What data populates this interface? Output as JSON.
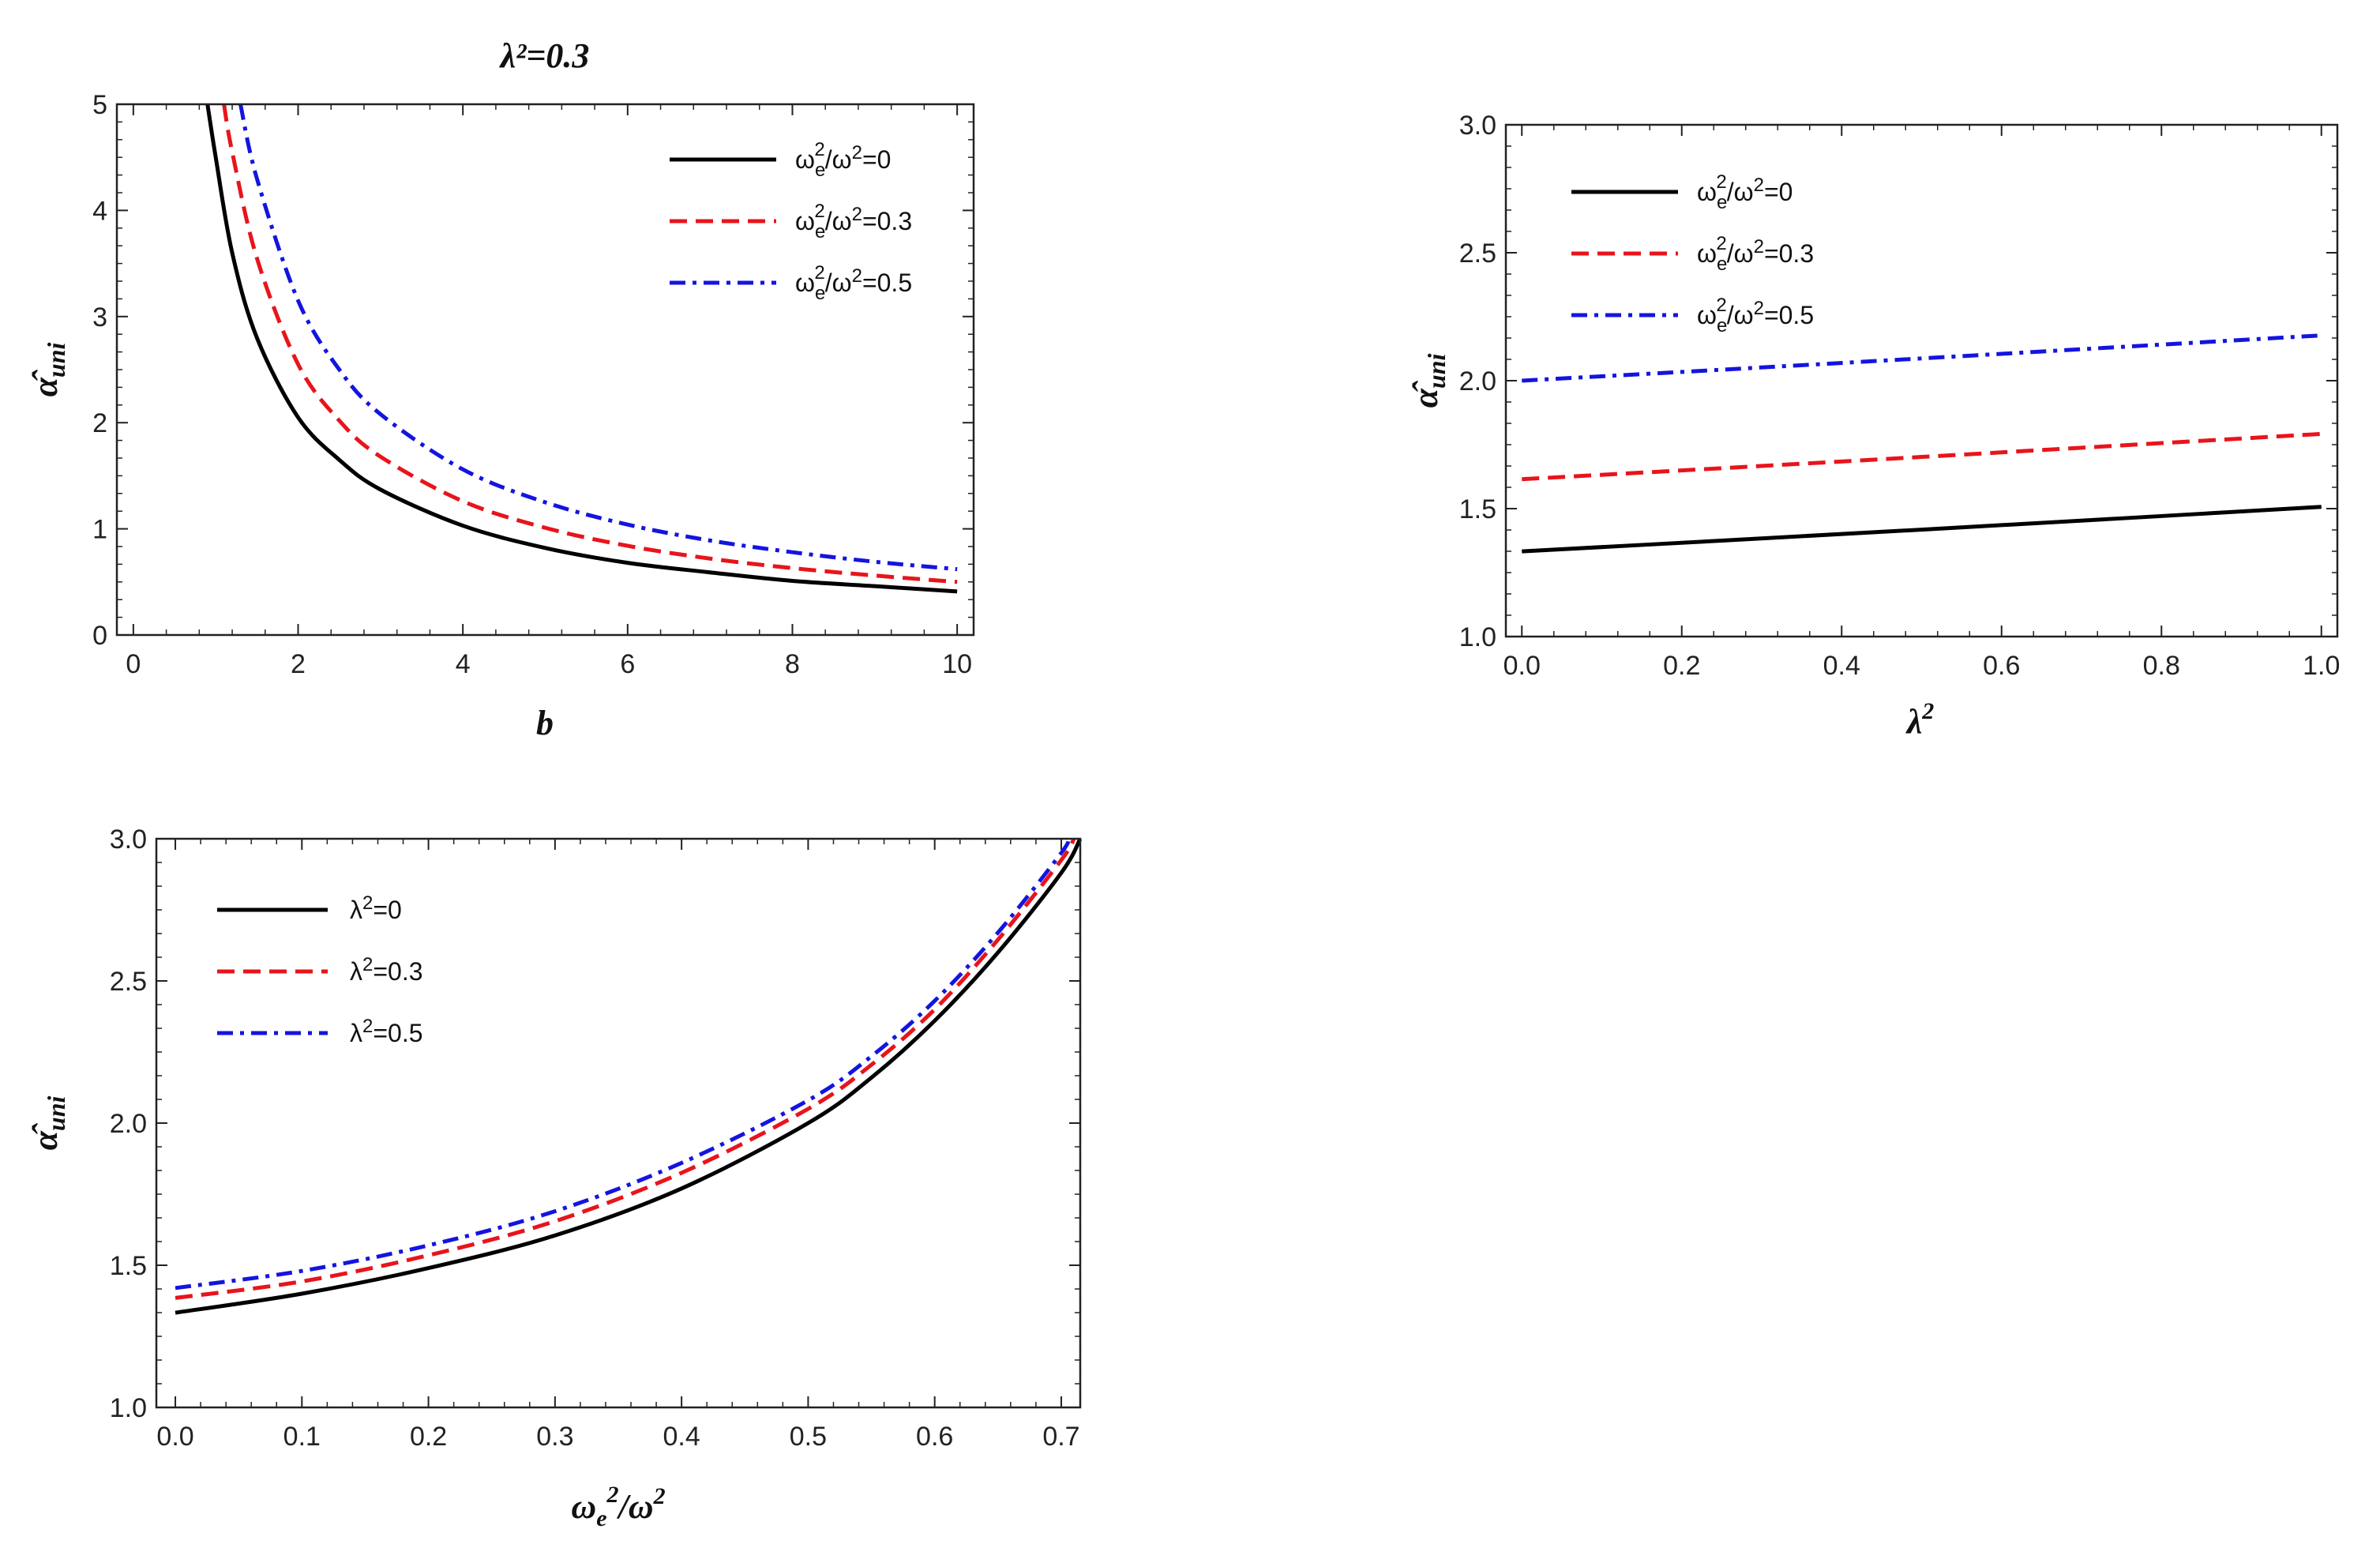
{
  "colors": {
    "black": "#000000",
    "red": "#e8141b",
    "blue": "#1414e0"
  },
  "chart_data": [
    {
      "type": "line",
      "title": "λ²=0.3",
      "xlabel": "b",
      "ylabel": "α̂uni",
      "xlim": [
        -0.2,
        10.2
      ],
      "ylim": [
        0,
        5
      ],
      "xticks": [
        0,
        2,
        4,
        6,
        8,
        10
      ],
      "yticks": [
        0,
        1,
        2,
        3,
        4,
        5
      ],
      "xtick_labels": [
        "0",
        "2",
        "4",
        "6",
        "8",
        "10"
      ],
      "ytick_labels": [
        "0",
        "1",
        "2",
        "3",
        "4",
        "5"
      ],
      "legend_position": "top-right",
      "series": [
        {
          "name": "ωe²/ω²=0",
          "style": "solid",
          "color": "#000000",
          "x": [
            0.9,
            1.0,
            1.2,
            1.5,
            2.0,
            2.5,
            3.0,
            4.0,
            5.0,
            6.0,
            7.0,
            8.0,
            9.0,
            10.0
          ],
          "y": [
            5.0,
            4.5,
            3.6,
            2.8,
            2.05,
            1.65,
            1.37,
            1.03,
            0.82,
            0.68,
            0.59,
            0.51,
            0.46,
            0.41
          ]
        },
        {
          "name": "ωe²/ω²=0.3",
          "style": "dashed",
          "color": "#e8141b",
          "x": [
            1.1,
            1.2,
            1.5,
            2.0,
            2.5,
            3.0,
            4.0,
            5.0,
            6.0,
            7.0,
            8.0,
            9.0,
            10.0
          ],
          "y": [
            5.0,
            4.55,
            3.55,
            2.55,
            2.02,
            1.68,
            1.26,
            1.01,
            0.84,
            0.72,
            0.63,
            0.56,
            0.5
          ]
        },
        {
          "name": "ωe²/ω²=0.5",
          "style": "dashdot",
          "color": "#1414e0",
          "x": [
            1.3,
            1.5,
            2.0,
            2.5,
            3.0,
            4.0,
            5.0,
            6.0,
            7.0,
            8.0,
            9.0,
            10.0
          ],
          "y": [
            5.0,
            4.3,
            3.15,
            2.5,
            2.08,
            1.56,
            1.25,
            1.04,
            0.89,
            0.78,
            0.69,
            0.62
          ]
        }
      ]
    },
    {
      "type": "line",
      "title": "",
      "xlabel": "λ²",
      "ylabel": "α̂uni",
      "xlim": [
        -0.02,
        1.02
      ],
      "ylim": [
        1.0,
        3.0
      ],
      "xticks": [
        0,
        0.2,
        0.4,
        0.6,
        0.8,
        1.0
      ],
      "yticks": [
        1.0,
        1.5,
        2.0,
        2.5,
        3.0
      ],
      "xtick_labels": [
        "0.0",
        "0.2",
        "0.4",
        "0.6",
        "0.8",
        "1.0"
      ],
      "ytick_labels": [
        "1.0",
        "1.5",
        "2.0",
        "2.5",
        "3.0"
      ],
      "legend_position": "top-left",
      "series": [
        {
          "name": "ωe²/ω²=0",
          "style": "solid",
          "color": "#000000",
          "x": [
            0,
            0.25,
            0.5,
            0.75,
            1.0
          ],
          "y": [
            1.333,
            1.375,
            1.418,
            1.462,
            1.507
          ]
        },
        {
          "name": "ωe²/ω²=0.3",
          "style": "dashed",
          "color": "#e8141b",
          "x": [
            0,
            0.25,
            0.5,
            0.75,
            1.0
          ],
          "y": [
            1.615,
            1.658,
            1.702,
            1.747,
            1.792
          ]
        },
        {
          "name": "ωe²/ω²=0.5",
          "style": "dashdot",
          "color": "#1414e0",
          "x": [
            0,
            0.25,
            0.5,
            0.75,
            1.0
          ],
          "y": [
            2.0,
            2.043,
            2.087,
            2.132,
            2.177
          ]
        }
      ]
    },
    {
      "type": "line",
      "title": "",
      "xlabel": "ωe²/ω²",
      "ylabel": "α̂uni",
      "xlim": [
        -0.015,
        0.715
      ],
      "ylim": [
        1.0,
        3.0
      ],
      "xticks": [
        0,
        0.1,
        0.2,
        0.3,
        0.4,
        0.5,
        0.6,
        0.7
      ],
      "yticks": [
        1.0,
        1.5,
        2.0,
        2.5,
        3.0
      ],
      "xtick_labels": [
        "0.0",
        "0.1",
        "0.2",
        "0.3",
        "0.4",
        "0.5",
        "0.6",
        "0.7"
      ],
      "ytick_labels": [
        "1.0",
        "1.5",
        "2.0",
        "2.5",
        "3.0"
      ],
      "legend_position": "top-left",
      "series": [
        {
          "name": "λ²=0",
          "style": "solid",
          "color": "#000000",
          "x": [
            0,
            0.1,
            0.2,
            0.3,
            0.4,
            0.5,
            0.55,
            0.6,
            0.65,
            0.7,
            0.715
          ],
          "y": [
            1.333,
            1.4,
            1.49,
            1.605,
            1.77,
            2.0,
            2.16,
            2.36,
            2.6,
            2.88,
            3.0
          ]
        },
        {
          "name": "λ²=0.3",
          "style": "dashed",
          "color": "#e8141b",
          "x": [
            0,
            0.1,
            0.2,
            0.3,
            0.4,
            0.5,
            0.55,
            0.6,
            0.65,
            0.7,
            0.71
          ],
          "y": [
            1.385,
            1.443,
            1.535,
            1.655,
            1.825,
            2.05,
            2.205,
            2.4,
            2.645,
            2.925,
            3.0
          ]
        },
        {
          "name": "λ²=0.5",
          "style": "dashdot",
          "color": "#1414e0",
          "x": [
            0,
            0.1,
            0.2,
            0.3,
            0.4,
            0.5,
            0.55,
            0.6,
            0.65,
            0.7,
            0.705
          ],
          "y": [
            1.42,
            1.48,
            1.57,
            1.69,
            1.86,
            2.08,
            2.235,
            2.43,
            2.67,
            2.95,
            3.0
          ]
        }
      ]
    }
  ]
}
